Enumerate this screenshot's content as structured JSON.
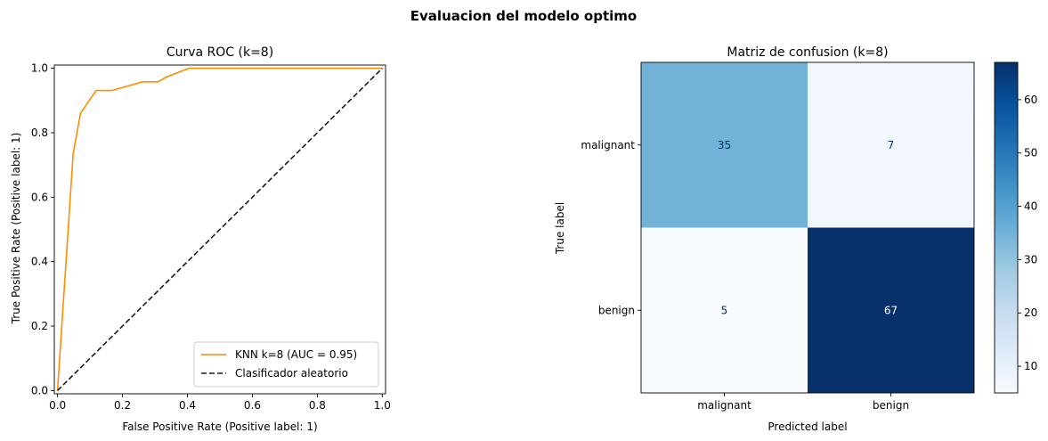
{
  "figure": {
    "suptitle": "Evaluacion del modelo optimo"
  },
  "chart_data": [
    {
      "type": "line",
      "title": "Curva ROC  (k=8)",
      "xlabel": "False Positive Rate (Positive label: 1)",
      "ylabel": "True Positive Rate (Positive label: 1)",
      "xlim": [
        -0.01,
        1.01
      ],
      "ylim": [
        -0.01,
        1.01
      ],
      "xticks": [
        "0.0",
        "0.2",
        "0.4",
        "0.6",
        "0.8",
        "1.0"
      ],
      "yticks": [
        "0.0",
        "0.2",
        "0.4",
        "0.6",
        "0.8",
        "1.0"
      ],
      "grid": false,
      "legend_position": "lower right",
      "series": [
        {
          "name": "KNN k=8 (AUC = 0.95)",
          "color": "#ff8c00",
          "style": "solid",
          "x": [
            0.0,
            0.0,
            0.048,
            0.071,
            0.119,
            0.167,
            0.262,
            0.31,
            0.333,
            0.405,
            1.0
          ],
          "y": [
            0.0,
            0.0,
            0.736,
            0.861,
            0.931,
            0.931,
            0.958,
            0.958,
            0.972,
            1.0,
            1.0
          ]
        },
        {
          "name": "Clasificador aleatorio",
          "color": "#1a1a1a",
          "style": "dashed",
          "x": [
            0,
            1
          ],
          "y": [
            0,
            1
          ]
        }
      ]
    },
    {
      "type": "heatmap",
      "title": "Matriz de confusion  (k=8)",
      "xlabel": "Predicted label",
      "ylabel": "True label",
      "x_categories": [
        "malignant",
        "benign"
      ],
      "y_categories": [
        "malignant",
        "benign"
      ],
      "values": [
        [
          35,
          7
        ],
        [
          5,
          67
        ]
      ],
      "colormap": "Blues",
      "colorbar": {
        "min": 5,
        "max": 67,
        "ticks": [
          10,
          20,
          30,
          40,
          50,
          60
        ]
      }
    }
  ]
}
